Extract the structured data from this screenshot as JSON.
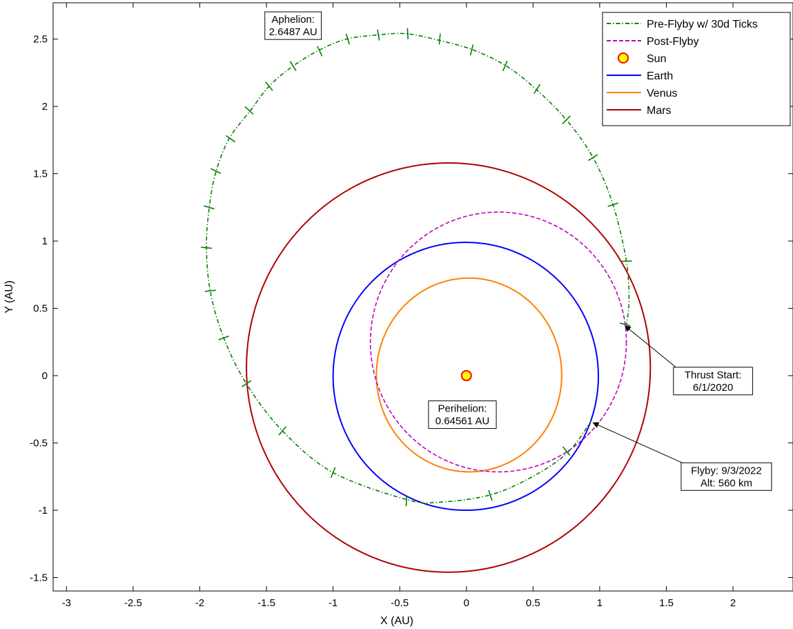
{
  "chart_data": {
    "type": "line",
    "xlabel": "X (AU)",
    "ylabel": "Y (AU)",
    "xlim": [
      -3.1,
      2.45
    ],
    "ylim": [
      -1.6,
      2.77
    ],
    "x_ticks": [
      -3,
      -2.5,
      -2,
      -1.5,
      -1,
      -0.5,
      0,
      0.5,
      1,
      1.5,
      2
    ],
    "y_ticks": [
      -1.5,
      -1,
      -0.5,
      0,
      0.5,
      1,
      1.5,
      2,
      2.5
    ],
    "grid": false,
    "legend_position": "top-right",
    "legend": [
      {
        "label": "Pre-Flyby w/ 30d Ticks",
        "color": "#007F00",
        "style": "dashdot"
      },
      {
        "label": "Post-Flyby",
        "color": "#BF00BF",
        "style": "dashed"
      },
      {
        "label": "Sun",
        "color": "#FFFF00",
        "edge": "#FF0000",
        "style": "marker"
      },
      {
        "label": "Earth",
        "color": "#0000FF",
        "style": "solid"
      },
      {
        "label": "Venus",
        "color": "#FF8000",
        "style": "solid"
      },
      {
        "label": "Mars",
        "color": "#B00000",
        "style": "solid"
      }
    ],
    "orbits": {
      "earth": {
        "cx": -0.005,
        "cy": -0.005,
        "rx": 0.995,
        "ry": 0.995
      },
      "venus": {
        "cx": 0.02,
        "cy": 0.005,
        "rx": 0.695,
        "ry": 0.72
      },
      "mars": {
        "cx": -0.135,
        "cy": 0.06,
        "rx": 1.515,
        "ry": 1.52
      },
      "post_flyby": {
        "cx": 0.24,
        "cy": 0.25,
        "rx": 0.96,
        "ry": 0.965
      }
    },
    "pre_flyby_path": [
      [
        0.94,
        -0.33
      ],
      [
        0.78,
        -0.55
      ],
      [
        0.55,
        -0.72
      ],
      [
        0.2,
        -0.88
      ],
      [
        -0.2,
        -0.94
      ],
      [
        -0.45,
        -0.92
      ],
      [
        -1.0,
        -0.72
      ],
      [
        -1.38,
        -0.41
      ],
      [
        -1.65,
        -0.06
      ],
      [
        -1.82,
        0.28
      ],
      [
        -1.92,
        0.62
      ],
      [
        -1.95,
        0.95
      ],
      [
        -1.93,
        1.24
      ],
      [
        -1.88,
        1.51
      ],
      [
        -1.78,
        1.76
      ],
      [
        -1.62,
        1.97
      ],
      [
        -1.48,
        2.15
      ],
      [
        -1.3,
        2.3
      ],
      [
        -1.1,
        2.42
      ],
      [
        -0.9,
        2.5
      ],
      [
        -0.68,
        2.53
      ],
      [
        -0.45,
        2.54
      ],
      [
        -0.2,
        2.49
      ],
      [
        0.05,
        2.42
      ],
      [
        0.3,
        2.3
      ],
      [
        0.52,
        2.13
      ],
      [
        0.75,
        1.9
      ],
      [
        0.95,
        1.62
      ],
      [
        1.1,
        1.27
      ],
      [
        1.2,
        0.85
      ],
      [
        1.22,
        0.55
      ],
      [
        1.2,
        0.38
      ]
    ],
    "pre_flyby_ticks": [
      [
        0.75,
        -0.56
      ],
      [
        0.18,
        -0.89
      ],
      [
        -0.45,
        -0.93
      ],
      [
        -1.0,
        -0.72
      ],
      [
        -1.38,
        -0.41
      ],
      [
        -1.65,
        -0.06
      ],
      [
        -1.82,
        0.28
      ],
      [
        -1.92,
        0.63
      ],
      [
        -1.95,
        0.95
      ],
      [
        -1.93,
        1.25
      ],
      [
        -1.88,
        1.52
      ],
      [
        -1.77,
        1.76
      ],
      [
        -1.63,
        1.97
      ],
      [
        -1.48,
        2.15
      ],
      [
        -1.3,
        2.3
      ],
      [
        -1.1,
        2.41
      ],
      [
        -0.89,
        2.5
      ],
      [
        -0.66,
        2.53
      ],
      [
        -0.44,
        2.54
      ],
      [
        -0.2,
        2.5
      ],
      [
        0.04,
        2.42
      ],
      [
        0.29,
        2.3
      ],
      [
        0.53,
        2.13
      ],
      [
        0.75,
        1.9
      ],
      [
        0.95,
        1.62
      ],
      [
        1.1,
        1.27
      ],
      [
        1.2,
        0.85
      ],
      [
        1.19,
        0.38
      ]
    ],
    "sun": {
      "x": 0,
      "y": 0
    },
    "annotations": [
      {
        "id": "aphelion",
        "lines": [
          "Aphelion:",
          "2.6487 AU"
        ],
        "x": -1.3,
        "y": 2.6
      },
      {
        "id": "perihelion",
        "lines": [
          "Perihelion:",
          "0.64561 AU"
        ],
        "x": -0.03,
        "y": -0.29
      },
      {
        "id": "thrust-start",
        "lines": [
          "Thrust Start:",
          "6/1/2020"
        ],
        "x": 1.85,
        "y": -0.04,
        "arrow_to": [
          1.19,
          0.37
        ]
      },
      {
        "id": "flyby",
        "lines": [
          "Flyby: 9/3/2022",
          "Alt: 560 km"
        ],
        "x": 1.95,
        "y": -0.75,
        "arrow_to": [
          0.95,
          -0.35
        ]
      }
    ]
  }
}
